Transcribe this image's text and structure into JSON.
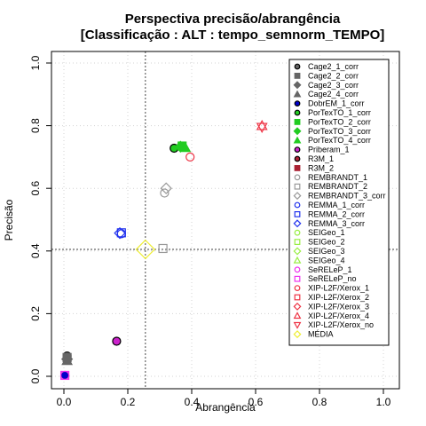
{
  "chart_data": {
    "type": "scatter",
    "title_line1": "Perspectiva precisão/abrangência",
    "title_line2": "[Classificação : ALT : tempo_semnorm_TEMPO]",
    "xlabel": "Abrangência",
    "ylabel": "Precisão",
    "xlim": [
      0,
      1
    ],
    "ylim": [
      0,
      1
    ],
    "xticks": [
      "0.0",
      "0.2",
      "0.4",
      "0.6",
      "0.8",
      "1.0"
    ],
    "yticks": [
      "0.0",
      "0.2",
      "0.4",
      "0.6",
      "0.8",
      "1.0"
    ],
    "grid": true,
    "legend_position": "right",
    "reference_lines": {
      "x": 0.255,
      "y": 0.405
    },
    "series": [
      {
        "name": "Cage2_1_corr",
        "color": "#666666",
        "shape": "circle",
        "filled": true,
        "x": 0.01,
        "y": 0.065
      },
      {
        "name": "Cage2_2_corr",
        "color": "#666666",
        "shape": "square",
        "filled": true,
        "x": 0.01,
        "y": 0.06
      },
      {
        "name": "Cage2_3_corr",
        "color": "#666666",
        "shape": "diamond",
        "filled": true,
        "x": 0.01,
        "y": 0.055
      },
      {
        "name": "Cage2_4_corr",
        "color": "#666666",
        "shape": "triangle",
        "filled": true,
        "x": 0.01,
        "y": 0.05
      },
      {
        "name": "DobrEM_1_corr",
        "color": "#0000cc",
        "shape": "circle",
        "filled": true,
        "x": 0.003,
        "y": 0.003
      },
      {
        "name": "PorTexTO_1_corr",
        "color": "#22cc22",
        "shape": "circle",
        "filled": true,
        "x": 0.345,
        "y": 0.728
      },
      {
        "name": "PorTexTO_2_corr",
        "color": "#22cc22",
        "shape": "square",
        "filled": true,
        "x": 0.37,
        "y": 0.735
      },
      {
        "name": "PorTexTO_3_corr",
        "color": "#22cc22",
        "shape": "diamond",
        "filled": true,
        "x": 0.365,
        "y": 0.733
      },
      {
        "name": "PorTexTO_4_corr",
        "color": "#22cc22",
        "shape": "triangle",
        "filled": true,
        "x": 0.38,
        "y": 0.73
      },
      {
        "name": "Priberam_1",
        "color": "#cc22cc",
        "shape": "circle",
        "filled": true,
        "x": 0.165,
        "y": 0.112
      },
      {
        "name": "R3M_1",
        "color": "#aa2233",
        "shape": "circle",
        "filled": true,
        "x": null,
        "y": null
      },
      {
        "name": "R3M_2",
        "color": "#aa2233",
        "shape": "square",
        "filled": true,
        "x": null,
        "y": null
      },
      {
        "name": "REMBRANDT_1",
        "color": "#999999",
        "shape": "circle",
        "filled": false,
        "x": 0.315,
        "y": 0.585
      },
      {
        "name": "REMBRANDT_2",
        "color": "#999999",
        "shape": "square",
        "filled": false,
        "x": 0.31,
        "y": 0.408
      },
      {
        "name": "REMBRANDT_3_corr",
        "color": "#999999",
        "shape": "diamond",
        "filled": false,
        "x": 0.32,
        "y": 0.6
      },
      {
        "name": "REMMA_1_corr",
        "color": "#2233ee",
        "shape": "circle",
        "filled": false,
        "x": 0.18,
        "y": 0.455
      },
      {
        "name": "REMMA_2_corr",
        "color": "#2233ee",
        "shape": "square",
        "filled": false,
        "x": 0.18,
        "y": 0.458
      },
      {
        "name": "REMMA_3_corr",
        "color": "#2233ee",
        "shape": "diamond",
        "filled": false,
        "x": 0.175,
        "y": 0.457
      },
      {
        "name": "SEIGeo_1",
        "color": "#99ee44",
        "shape": "circle",
        "filled": false,
        "x": null,
        "y": null
      },
      {
        "name": "SEIGeo_2",
        "color": "#99ee44",
        "shape": "square",
        "filled": false,
        "x": null,
        "y": null
      },
      {
        "name": "SEIGeo_3",
        "color": "#99ee44",
        "shape": "diamond",
        "filled": false,
        "x": null,
        "y": null
      },
      {
        "name": "SEIGeo_4",
        "color": "#99ee44",
        "shape": "triangle",
        "filled": false,
        "x": null,
        "y": null
      },
      {
        "name": "SeRELeP_1",
        "color": "#ee33ee",
        "shape": "circle",
        "filled": false,
        "x": 0.003,
        "y": 0.003
      },
      {
        "name": "SeRELeP_no",
        "color": "#ee33ee",
        "shape": "square",
        "filled": false,
        "x": 0.003,
        "y": 0.003
      },
      {
        "name": "XIP-L2F/Xerox_1",
        "color": "#ee3344",
        "shape": "circle",
        "filled": false,
        "x": 0.395,
        "y": 0.7
      },
      {
        "name": "XIP-L2F/Xerox_2",
        "color": "#ee3344",
        "shape": "square",
        "filled": false,
        "x": null,
        "y": null
      },
      {
        "name": "XIP-L2F/Xerox_3",
        "color": "#ee3344",
        "shape": "diamond",
        "filled": false,
        "x": null,
        "y": null
      },
      {
        "name": "XIP-L2F/Xerox_4",
        "color": "#ee3344",
        "shape": "triangle",
        "filled": false,
        "x": 0.62,
        "y": 0.8
      },
      {
        "name": "XIP-L2F/Xerox_no",
        "color": "#ee3344",
        "shape": "triangle-down",
        "filled": false,
        "x": 0.62,
        "y": 0.795
      },
      {
        "name": "MÉDIA",
        "color": "#eeee33",
        "shape": "diamond",
        "filled": false,
        "x": 0.255,
        "y": 0.405
      }
    ]
  }
}
